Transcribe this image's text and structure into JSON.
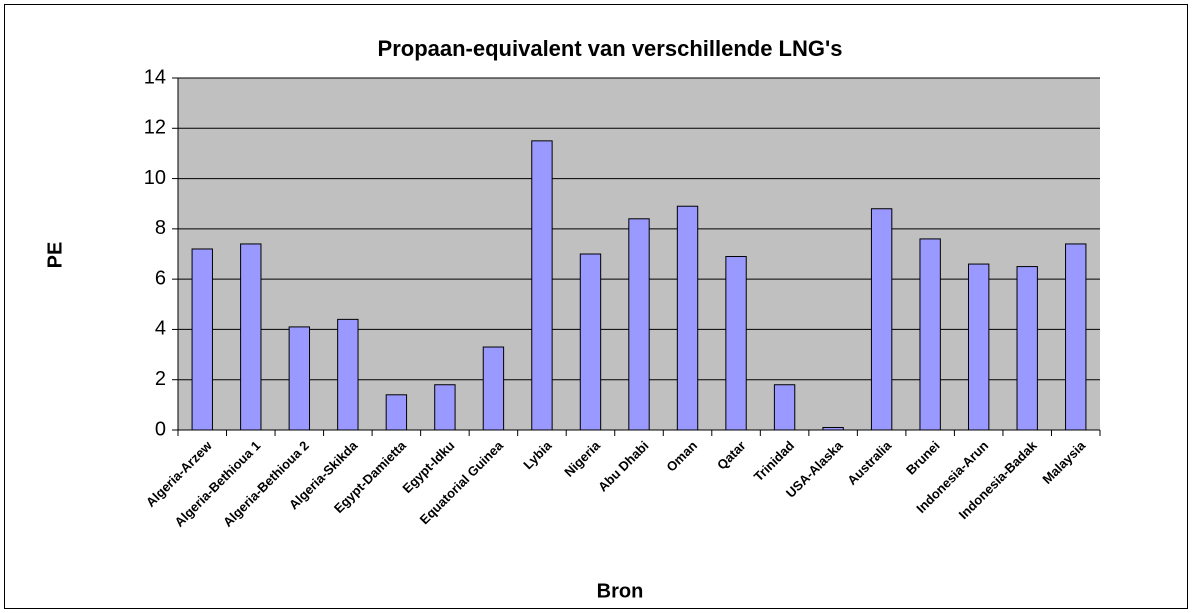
{
  "chart_data": {
    "type": "bar",
    "title": "Propaan-equivalent van verschillende LNG's",
    "x_label": "Bron",
    "y_label": "PE",
    "categories": [
      "Algeria-Arzew",
      "Algeria-Bethioua 1",
      "Algeria-Bethioua 2",
      "Algeria-Skikda",
      "Egypt-Damietta",
      "Egypt-Idku",
      "Equatorial Guinea",
      "Lybia",
      "Nigeria",
      "Abu Dhabi",
      "Oman",
      "Qatar",
      "Trinidad",
      "USA-Alaska",
      "Australia",
      "Brunei",
      "Indonesia-Arun",
      "Indonesia-Badak",
      "Malaysia"
    ],
    "values": [
      7.2,
      7.4,
      4.1,
      4.4,
      1.4,
      1.8,
      3.3,
      11.5,
      7.0,
      8.4,
      8.9,
      6.9,
      1.8,
      0.1,
      8.8,
      7.6,
      6.6,
      6.5,
      7.4
    ],
    "color": "#9999ff",
    "ylim": [
      0,
      14
    ],
    "yticks": [
      0,
      2,
      4,
      6,
      8,
      10,
      12,
      14
    ],
    "grid": true
  }
}
